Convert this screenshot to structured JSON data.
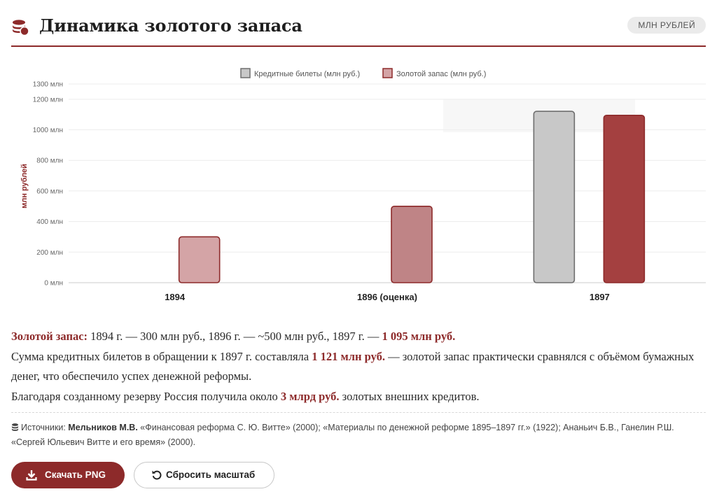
{
  "header": {
    "title": "Динамика золотого запаса",
    "icon": "coins-icon",
    "unit_badge": "МЛН РУБЛЕЙ"
  },
  "colors": {
    "accent": "#8d2a2a",
    "credit_bar": "#c8c8c8",
    "credit_stroke": "#6e6e6e",
    "gold_light": "#d4a4a6",
    "gold_mid": "#bf8486",
    "gold_dark": "#a44040",
    "gold_stroke": "#8d2a2a"
  },
  "chart_data": {
    "type": "bar",
    "categories": [
      "1894",
      "1896 (оценка)",
      "1897"
    ],
    "series": [
      {
        "name": "Кредитные билеты (млн руб.)",
        "values": [
          null,
          null,
          1121
        ]
      },
      {
        "name": "Золотой запас (млн руб.)",
        "values": [
          300,
          500,
          1095
        ]
      }
    ],
    "ylabel": "млн рублей",
    "ylim": [
      0,
      1300
    ],
    "yticks": [
      "0 млн",
      "200 млн",
      "400 млн",
      "600 млн",
      "800 млн",
      "1000 млн",
      "1200 млн",
      "1300 млн"
    ],
    "ytick_values": [
      0,
      200,
      400,
      600,
      800,
      1000,
      1200,
      1300
    ],
    "grid": true,
    "legend_position": "top-center"
  },
  "summary": {
    "line1": {
      "label": "Золотой запас:",
      "text": " 1894 г. — 300 млн руб., 1896 г. — ~500 млн руб., 1897 г. — ",
      "highlight": "1 095 млн руб."
    },
    "line2": {
      "text_before": "Сумма кредитных билетов в обращении к 1897 г. составляла ",
      "highlight": "1 121 млн руб.",
      "text_after": " — золотой запас практически сравнялся с объёмом бумажных денег, что обеспечило успех денежной реформы."
    },
    "line3": {
      "text_before": "Благодаря созданному резерву Россия получила около ",
      "highlight": "3 млрд руб.",
      "text_after": " золотых внешних кредитов."
    }
  },
  "sources": {
    "icon": "database-icon",
    "label": "Источники: ",
    "author": "Мельников М.В.",
    "text": " «Финансовая реформа С. Ю. Витте» (2000); «Материалы по денежной реформе 1895–1897 гг.» (1922); Ананьич Б.В., Ганелин Р.Ш. «Сергей Юльевич Витте и его время» (2000)."
  },
  "buttons": {
    "download_label": "Скачать PNG",
    "download_icon": "download-icon",
    "reset_label": "Сбросить масштаб",
    "reset_icon": "reset-icon"
  }
}
